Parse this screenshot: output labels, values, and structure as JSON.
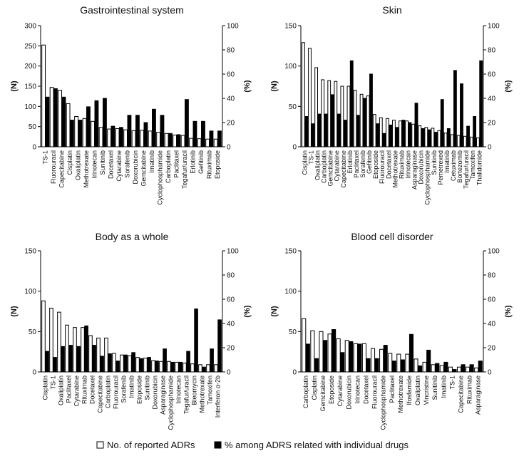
{
  "legend": {
    "open_label": "No. of reported ADRs",
    "filled_label": "% among ADRS related with individual drugs"
  },
  "chart_data": [
    {
      "type": "bar",
      "title": "Gastrointestinal system",
      "ylabel_left": "(N)",
      "ylabel_right": "(%)",
      "ylim_left": [
        0,
        300
      ],
      "yticks_left": [
        0,
        50,
        100,
        150,
        200,
        250,
        300
      ],
      "ylim_right": [
        0,
        100
      ],
      "yticks_right": [
        0,
        20,
        40,
        60,
        80,
        100
      ],
      "categories": [
        "TS-1",
        "Fluorouracil",
        "Capecitabine",
        "Cisplatin",
        "Oxaliplatin",
        "Methotrexate",
        "Irinotecan",
        "Sunitinib",
        "Docetaxel",
        "Cytarabine",
        "Sorafenib",
        "Doxorubicin",
        "Gemcitabine",
        "Imatinib",
        "Cyclophosphamide",
        "Carboplatin",
        "Paclitaxel",
        "Tegafur/uracil",
        "Erlotinib",
        "Gefitinib",
        "Rituximab",
        "Etoposide"
      ],
      "series": [
        {
          "name": "No. of reported ADRs",
          "style": "open",
          "axis": "left",
          "values": [
            252,
            147,
            140,
            107,
            75,
            70,
            63,
            48,
            44,
            45,
            42,
            40,
            41,
            39,
            36,
            33,
            29,
            28,
            21,
            20,
            19,
            19
          ]
        },
        {
          "name": "% among ADRS related with individual drugs",
          "style": "filled",
          "axis": "right",
          "values": [
            41,
            48,
            41,
            22,
            22,
            33,
            38,
            40,
            17,
            16,
            26,
            26,
            20,
            31,
            26,
            11,
            10,
            39,
            21,
            21,
            13,
            13
          ]
        }
      ]
    },
    {
      "type": "bar",
      "title": "Skin",
      "ylabel_left": "(N)",
      "ylabel_right": "(%)",
      "ylim_left": [
        0,
        150
      ],
      "yticks_left": [
        0,
        50,
        100,
        150
      ],
      "ylim_right": [
        0,
        100
      ],
      "yticks_right": [
        0,
        20,
        40,
        60,
        80,
        100
      ],
      "categories": [
        "Cisplatin",
        "TS-1",
        "Oxaliplatin",
        "Carboplatin",
        "Gemcitabine",
        "Cytarabine",
        "Capecitabine",
        "Erlotinib",
        "Paclitaxel",
        "Sorafenib",
        "Gefitinib",
        "Etoposide",
        "Fluorouracil",
        "Docetaxel",
        "Methotrexate",
        "Rituximab",
        "Irinotecan",
        "Asparaginase",
        "Doxorubicin",
        "Cyclophosphamide",
        "Sunitinib",
        "Pemetrexed",
        "Imatinib",
        "Cetuximab",
        "Bortezomib",
        "Tegafur/uracil",
        "Tamoxifen",
        "Thalidomide"
      ],
      "series": [
        {
          "name": "No. of reported ADRs",
          "style": "open",
          "axis": "left",
          "values": [
            129,
            122,
            98,
            83,
            82,
            81,
            75,
            75,
            70,
            65,
            63,
            40,
            36,
            35,
            33,
            32,
            32,
            28,
            26,
            24,
            23,
            20,
            17,
            15,
            14,
            13,
            12,
            11
          ]
        },
        {
          "name": "% among ADRS related with individual drugs",
          "style": "filled",
          "axis": "right",
          "values": [
            25,
            19,
            27,
            27,
            43,
            27,
            22,
            71,
            26,
            40,
            60,
            19,
            11,
            18,
            16,
            22,
            20,
            36,
            15,
            14,
            12,
            39,
            15,
            63,
            52,
            17,
            25,
            71
          ]
        }
      ]
    },
    {
      "type": "bar",
      "title": "Body as a whole",
      "ylabel_left": "(N)",
      "ylabel_right": "(%)",
      "ylim_left": [
        0,
        150
      ],
      "yticks_left": [
        0,
        50,
        100,
        150
      ],
      "ylim_right": [
        0,
        100
      ],
      "yticks_right": [
        0,
        20,
        40,
        60,
        80,
        100
      ],
      "categories": [
        "Cisplatin",
        "TS-1",
        "Oxaliplatin",
        "Paclitaxel",
        "Cytarabine",
        "Rituximab",
        "Docetaxel",
        "Capecitabine",
        "Carboplatin",
        "Fluorouracil",
        "Sorafenib",
        "Imatinib",
        "Etoposide",
        "Sunitinib",
        "Doxorubicin",
        "Asparaginase",
        "Cyclophosphamide",
        "Irinotecan",
        "Tegafur/uracil",
        "Bleomycin",
        "Methotrexate",
        "Tamoxifen",
        "Interferon α-2b"
      ],
      "series": [
        {
          "name": "No. of reported ADRs",
          "style": "open",
          "axis": "left",
          "values": [
            88,
            79,
            74,
            58,
            55,
            55,
            45,
            42,
            42,
            23,
            21,
            20,
            18,
            17,
            14,
            13,
            13,
            12,
            11,
            10,
            9,
            9,
            9
          ]
        },
        {
          "name": "% among ADRS related with individual drugs",
          "style": "filled",
          "axis": "right",
          "values": [
            17,
            12,
            21,
            22,
            21,
            38,
            22,
            13,
            15,
            9,
            14,
            16,
            11,
            12,
            9,
            19,
            8,
            8,
            17,
            52,
            4,
            19,
            43
          ]
        }
      ]
    },
    {
      "type": "bar",
      "title": "Blood cell disorder",
      "ylabel_left": "(N)",
      "ylabel_right": "(%)",
      "ylim_left": [
        0,
        150
      ],
      "yticks_left": [
        0,
        50,
        100,
        150
      ],
      "ylim_right": [
        0,
        100
      ],
      "yticks_right": [
        0,
        20,
        40,
        60,
        80,
        100
      ],
      "categories": [
        "Carboplatin",
        "Cisplatin",
        "Gemcitabine",
        "Etoposide",
        "Cytarabine",
        "Doxorubicin",
        "Irinotecan",
        "Docetaxel",
        "Fluorouracil",
        "Cyclophosphamide",
        "Paclitaxel",
        "Methotrexate",
        "Ifosfamide",
        "Oxaliplatin",
        "Vincristine",
        "Sunitinib",
        "Imatinib",
        "TS-1",
        "Capecitabine",
        "Rituximab",
        "Asparaginase"
      ],
      "series": [
        {
          "name": "No. of reported ADRs",
          "style": "open",
          "axis": "left",
          "values": [
            66,
            51,
            50,
            47,
            41,
            39,
            35,
            35,
            29,
            28,
            23,
            22,
            22,
            16,
            12,
            9,
            8,
            6,
            6,
            6,
            5
          ]
        },
        {
          "name": "% among ADRS related with individual drugs",
          "style": "filled",
          "axis": "right",
          "values": [
            23,
            11,
            26,
            35,
            16,
            25,
            23,
            11,
            11,
            22,
            9,
            10,
            31,
            5,
            18,
            7,
            8,
            2,
            6,
            6,
            9
          ]
        }
      ]
    }
  ]
}
